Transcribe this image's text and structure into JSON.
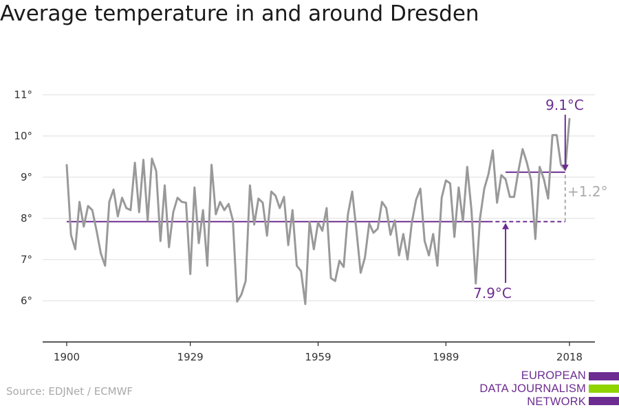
{
  "chart_data": {
    "type": "line",
    "title": "Average temperature in and around Dresden",
    "xlabel": "",
    "ylabel": "",
    "xlim": [
      1900,
      2018
    ],
    "ylim": [
      5,
      11
    ],
    "x_ticks": [
      1900,
      1929,
      1959,
      1989,
      2018
    ],
    "y_ticks": [
      6,
      7,
      8,
      9,
      10,
      11
    ],
    "y_tick_labels": [
      "6°",
      "7°",
      "8°",
      "9°",
      "10°",
      "11°"
    ],
    "grid": true,
    "series": [
      {
        "color": "#999999",
        "x": [
          1900,
          1901,
          1902,
          1903,
          1904,
          1905,
          1906,
          1907,
          1908,
          1909,
          1910,
          1911,
          1912,
          1913,
          1914,
          1915,
          1916,
          1917,
          1918,
          1919,
          1920,
          1921,
          1922,
          1923,
          1924,
          1925,
          1926,
          1927,
          1928,
          1929,
          1930,
          1931,
          1932,
          1933,
          1934,
          1935,
          1936,
          1937,
          1938,
          1939,
          1940,
          1941,
          1942,
          1943,
          1944,
          1945,
          1946,
          1947,
          1948,
          1949,
          1950,
          1951,
          1952,
          1953,
          1954,
          1955,
          1956,
          1957,
          1958,
          1959,
          1960,
          1961,
          1962,
          1963,
          1964,
          1965,
          1966,
          1967,
          1968,
          1969,
          1970,
          1971,
          1972,
          1973,
          1974,
          1975,
          1976,
          1977,
          1978,
          1979,
          1980,
          1981,
          1982,
          1983,
          1984,
          1985,
          1986,
          1987,
          1988,
          1989,
          1990,
          1991,
          1992,
          1993,
          1994,
          1995,
          1996,
          1997,
          1998,
          1999,
          2000,
          2001,
          2002,
          2003,
          2004,
          2005,
          2006,
          2007,
          2008,
          2009,
          2010,
          2011,
          2012,
          2013,
          2014,
          2015,
          2016,
          2017,
          2018
        ],
        "y": [
          9.3,
          7.6,
          7.25,
          8.4,
          7.8,
          8.3,
          8.2,
          7.7,
          7.15,
          6.85,
          8.4,
          8.7,
          8.05,
          8.5,
          8.25,
          8.2,
          9.35,
          8.15,
          9.42,
          7.95,
          9.45,
          9.15,
          7.45,
          8.8,
          7.3,
          8.15,
          8.5,
          8.4,
          8.38,
          6.65,
          8.75,
          7.4,
          8.2,
          6.85,
          9.3,
          8.1,
          8.4,
          8.2,
          8.35,
          7.95,
          5.98,
          6.15,
          6.48,
          8.8,
          7.85,
          8.48,
          8.38,
          7.58,
          8.65,
          8.55,
          8.25,
          8.52,
          7.35,
          8.2,
          6.85,
          6.72,
          5.92,
          7.92,
          7.25,
          7.9,
          7.7,
          8.25,
          6.55,
          6.48,
          6.97,
          6.82,
          8.1,
          8.65,
          7.7,
          6.68,
          7.05,
          7.88,
          7.65,
          7.75,
          8.4,
          8.25,
          7.6,
          7.95,
          7.1,
          7.62,
          7.0,
          7.9,
          8.45,
          8.72,
          7.45,
          7.1,
          7.62,
          6.85,
          8.5,
          8.92,
          8.85,
          7.55,
          8.75,
          7.92,
          9.25,
          8.2,
          6.42,
          8.0,
          8.72,
          9.08,
          9.65,
          8.38,
          9.05,
          8.95,
          8.52,
          8.52,
          9.15,
          9.68,
          9.35,
          8.92,
          7.5,
          9.25,
          8.95,
          8.48,
          10.02,
          10.02,
          9.3,
          9.18,
          10.42
        ]
      }
    ],
    "reference_lines": [
      {
        "from": 1900,
        "to": 1999,
        "value": 7.92,
        "style": "solid",
        "color": "#6c2c91"
      },
      {
        "from": 1999,
        "to": 2017,
        "value": 7.92,
        "style": "dashed",
        "color": "#6c2c91"
      },
      {
        "from": 2003,
        "to": 2017,
        "value": 9.12,
        "style": "solid",
        "color": "#6c2c91"
      }
    ],
    "annotations": [
      {
        "text": "9.1°C",
        "x": 2017,
        "y": 9.12,
        "color": "#6c2c91"
      },
      {
        "text": "7.9°C",
        "x": 2003,
        "y": 7.92,
        "color": "#6c2c91"
      },
      {
        "text": "+1.2°",
        "x": 2017,
        "y": 8.5,
        "color": "#aaaaaa"
      }
    ]
  },
  "source": "Source: EDJNet / ECMWF",
  "logo": {
    "lines": [
      "EUROPEAN",
      "DATA JOURNALISM",
      "NETWORK"
    ],
    "colors": {
      "purple": "#6c2c91",
      "green": "#8fd400"
    }
  }
}
